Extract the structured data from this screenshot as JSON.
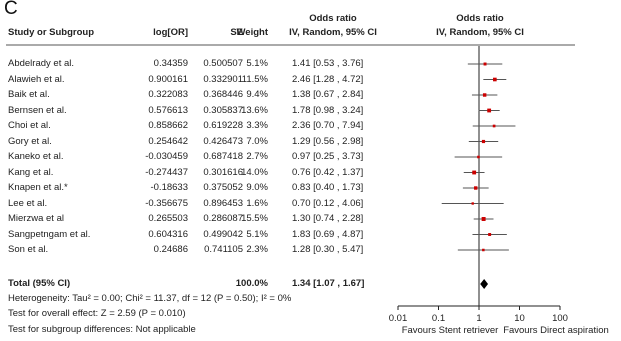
{
  "panel_label": "C",
  "table": {
    "headers": {
      "study": "Study or Subgroup",
      "log_or": "log[OR]",
      "se": "SE",
      "weight": "Weight",
      "or_top": "Odds ratio",
      "or_sub": "IV, Random, 95% CI",
      "plot_top": "Odds ratio",
      "plot_sub": "IV, Random, 95% CI"
    },
    "rows": [
      {
        "study": "Abdelrady et al.",
        "log_or": "0.34359",
        "se": "0.500507",
        "weight": "5.1%",
        "ci": "1.41 [0.53 , 3.76]"
      },
      {
        "study": "Alawieh et al.",
        "log_or": "0.900161",
        "se": "0.332901",
        "weight": "11.5%",
        "ci": "2.46 [1.28 , 4.72]"
      },
      {
        "study": "Baik et al.",
        "log_or": "0.322083",
        "se": "0.368446",
        "weight": "9.4%",
        "ci": "1.38 [0.67 , 2.84]"
      },
      {
        "study": "Bernsen et al.",
        "log_or": "0.576613",
        "se": "0.305837",
        "weight": "13.6%",
        "ci": "1.78 [0.98 , 3.24]"
      },
      {
        "study": "Choi et al.",
        "log_or": "0.858662",
        "se": "0.619228",
        "weight": "3.3%",
        "ci": "2.36 [0.70 , 7.94]"
      },
      {
        "study": "Gory et al.",
        "log_or": "0.254642",
        "se": "0.426473",
        "weight": "7.0%",
        "ci": "1.29 [0.56 , 2.98]"
      },
      {
        "study": "Kaneko et al.",
        "log_or": "-0.030459",
        "se": "0.687418",
        "weight": "2.7%",
        "ci": "0.97 [0.25 , 3.73]"
      },
      {
        "study": "Kang et al.",
        "log_or": "-0.274437",
        "se": "0.301616",
        "weight": "14.0%",
        "ci": "0.76 [0.42 , 1.37]"
      },
      {
        "study": "Knapen et al.*",
        "log_or": "-0.18633",
        "se": "0.375052",
        "weight": "9.0%",
        "ci": "0.83 [0.40 , 1.73]"
      },
      {
        "study": "Lee et al.",
        "log_or": "-0.356675",
        "se": "0.896453",
        "weight": "1.6%",
        "ci": "0.70 [0.12 , 4.06]"
      },
      {
        "study": "Mierzwa et al",
        "log_or": "0.265503",
        "se": "0.286087",
        "weight": "15.5%",
        "ci": "1.30 [0.74 , 2.28]"
      },
      {
        "study": "Sangpetngam et al.",
        "log_or": "0.604316",
        "se": "0.499042",
        "weight": "5.1%",
        "ci": "1.83 [0.69 , 4.87]"
      },
      {
        "study": "Son et al.",
        "log_or": "0.24686",
        "se": "0.741105",
        "weight": "2.3%",
        "ci": "1.28 [0.30 , 5.47]"
      }
    ],
    "total": {
      "study": "Total (95% CI)",
      "weight": "100.0%",
      "ci": "1.34 [1.07 , 1.67]"
    },
    "heterogeneity": "Heterogeneity: Tau² = 0.00; Chi² = 11.37, df = 12 (P = 0.50); I² = 0%",
    "overall_effect": "Test for overall effect: Z = 2.59 (P = 0.010)",
    "subgroup_diff": "Test for subgroup differences: Not applicable"
  },
  "chart_data": {
    "type": "forest",
    "scale": "log",
    "xlim": [
      0.01,
      100
    ],
    "ticks": [
      "0.01",
      "0.1",
      "1",
      "10",
      "100"
    ],
    "tick_values": [
      0.01,
      0.1,
      1,
      10,
      100
    ],
    "left_label": "Favours Stent retriever",
    "right_label": "Favours  Direct aspiration",
    "studies": [
      {
        "or": 1.41,
        "lo": 0.53,
        "hi": 3.76,
        "weight": 5.1
      },
      {
        "or": 2.46,
        "lo": 1.28,
        "hi": 4.72,
        "weight": 11.5
      },
      {
        "or": 1.38,
        "lo": 0.67,
        "hi": 2.84,
        "weight": 9.4
      },
      {
        "or": 1.78,
        "lo": 0.98,
        "hi": 3.24,
        "weight": 13.6
      },
      {
        "or": 2.36,
        "lo": 0.7,
        "hi": 7.94,
        "weight": 3.3
      },
      {
        "or": 1.29,
        "lo": 0.56,
        "hi": 2.98,
        "weight": 7.0
      },
      {
        "or": 0.97,
        "lo": 0.25,
        "hi": 3.73,
        "weight": 2.7
      },
      {
        "or": 0.76,
        "lo": 0.42,
        "hi": 1.37,
        "weight": 14.0
      },
      {
        "or": 0.83,
        "lo": 0.4,
        "hi": 1.73,
        "weight": 9.0
      },
      {
        "or": 0.7,
        "lo": 0.12,
        "hi": 4.06,
        "weight": 1.6
      },
      {
        "or": 1.3,
        "lo": 0.74,
        "hi": 2.28,
        "weight": 15.5
      },
      {
        "or": 1.83,
        "lo": 0.69,
        "hi": 4.87,
        "weight": 5.1
      },
      {
        "or": 1.28,
        "lo": 0.3,
        "hi": 5.47,
        "weight": 2.3
      }
    ],
    "total": {
      "or": 1.34,
      "lo": 1.07,
      "hi": 1.67
    },
    "colors": {
      "point": "#cc0000",
      "ci": "#555555",
      "diamond": "#000000"
    }
  }
}
